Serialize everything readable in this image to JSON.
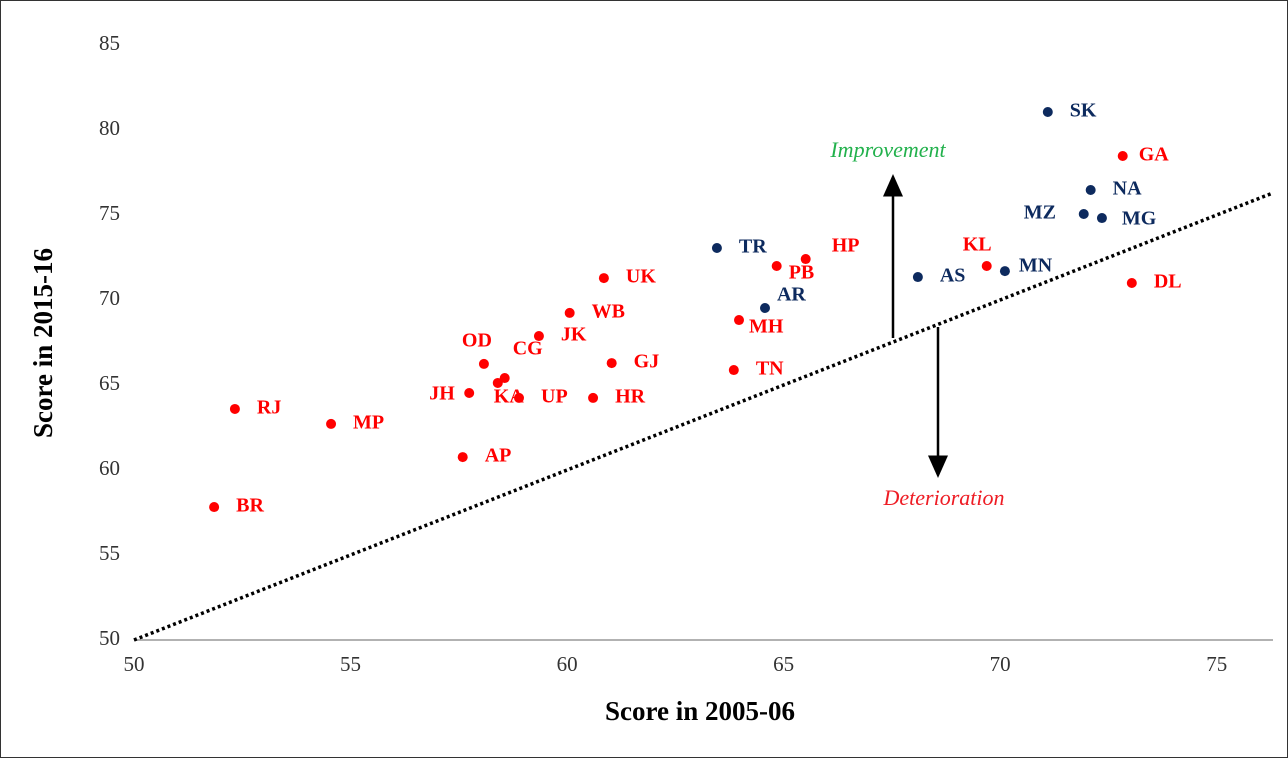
{
  "chart_data": {
    "type": "scatter",
    "xlabel": "Score in 2005-06",
    "ylabel": "Score in 2015-16",
    "xlim": [
      50,
      76.3
    ],
    "ylim": [
      50,
      85
    ],
    "xticks": [
      50,
      55,
      60,
      65,
      70,
      75
    ],
    "yticks": [
      50,
      55,
      60,
      65,
      70,
      75,
      80,
      85
    ],
    "annotations": [
      "Improvement",
      "Deterioration"
    ],
    "annotation_colors": [
      "#22b14c",
      "#ee1c24"
    ],
    "diagonal_style": "dotted",
    "points": [
      {
        "label": "SK",
        "x": 71.1,
        "y": 81.06,
        "color": "#0d2a5e"
      },
      {
        "label": "GA",
        "x": 72.83,
        "y": 78.47,
        "color": "#ff0000"
      },
      {
        "label": "NA",
        "x": 72.09,
        "y": 76.47,
        "color": "#0d2a5e"
      },
      {
        "label": "MZ",
        "x": 71.93,
        "y": 75.06,
        "color": "#0d2a5e"
      },
      {
        "label": "MG",
        "x": 72.35,
        "y": 74.82,
        "color": "#0d2a5e"
      },
      {
        "label": "DL",
        "x": 73.04,
        "y": 71.0,
        "color": "#ff0000"
      },
      {
        "label": "KL",
        "x": 69.69,
        "y": 72.0,
        "color": "#ff0000"
      },
      {
        "label": "MN",
        "x": 70.11,
        "y": 71.7,
        "color": "#0d2a5e"
      },
      {
        "label": "AS",
        "x": 68.1,
        "y": 71.35,
        "color": "#0d2a5e"
      },
      {
        "label": "TR",
        "x": 63.46,
        "y": 73.06,
        "color": "#0d2a5e"
      },
      {
        "label": "HP",
        "x": 65.51,
        "y": 72.41,
        "color": "#ff0000"
      },
      {
        "label": "PB",
        "x": 64.84,
        "y": 72.0,
        "color": "#ff0000"
      },
      {
        "label": "AR",
        "x": 64.57,
        "y": 69.53,
        "color": "#0d2a5e"
      },
      {
        "label": "MH",
        "x": 63.97,
        "y": 68.82,
        "color": "#ff0000"
      },
      {
        "label": "TN",
        "x": 63.85,
        "y": 65.88,
        "color": "#ff0000"
      },
      {
        "label": "UK",
        "x": 60.85,
        "y": 71.29,
        "color": "#ff0000"
      },
      {
        "label": "WB",
        "x": 60.06,
        "y": 69.24,
        "color": "#ff0000"
      },
      {
        "label": "JK",
        "x": 59.35,
        "y": 67.88,
        "color": "#ff0000"
      },
      {
        "label": "GJ",
        "x": 61.03,
        "y": 66.29,
        "color": "#ff0000"
      },
      {
        "label": "HR",
        "x": 60.6,
        "y": 64.24,
        "color": "#ff0000"
      },
      {
        "label": "OD",
        "x": 58.08,
        "y": 66.24,
        "color": "#ff0000"
      },
      {
        "label": "CG",
        "x": 58.56,
        "y": 65.41,
        "color": "#ff0000"
      },
      {
        "label": "KA",
        "x": 58.4,
        "y": 65.12,
        "color": "#ff0000"
      },
      {
        "label": "JH",
        "x": 57.74,
        "y": 64.53,
        "color": "#ff0000"
      },
      {
        "label": "UP",
        "x": 58.89,
        "y": 64.24,
        "color": "#ff0000"
      },
      {
        "label": "AP",
        "x": 57.59,
        "y": 60.76,
        "color": "#ff0000"
      },
      {
        "label": "RJ",
        "x": 52.33,
        "y": 63.59,
        "color": "#ff0000"
      },
      {
        "label": "MP",
        "x": 54.55,
        "y": 62.71,
        "color": "#ff0000"
      },
      {
        "label": "BR",
        "x": 51.85,
        "y": 57.82,
        "color": "#ff0000"
      }
    ]
  }
}
